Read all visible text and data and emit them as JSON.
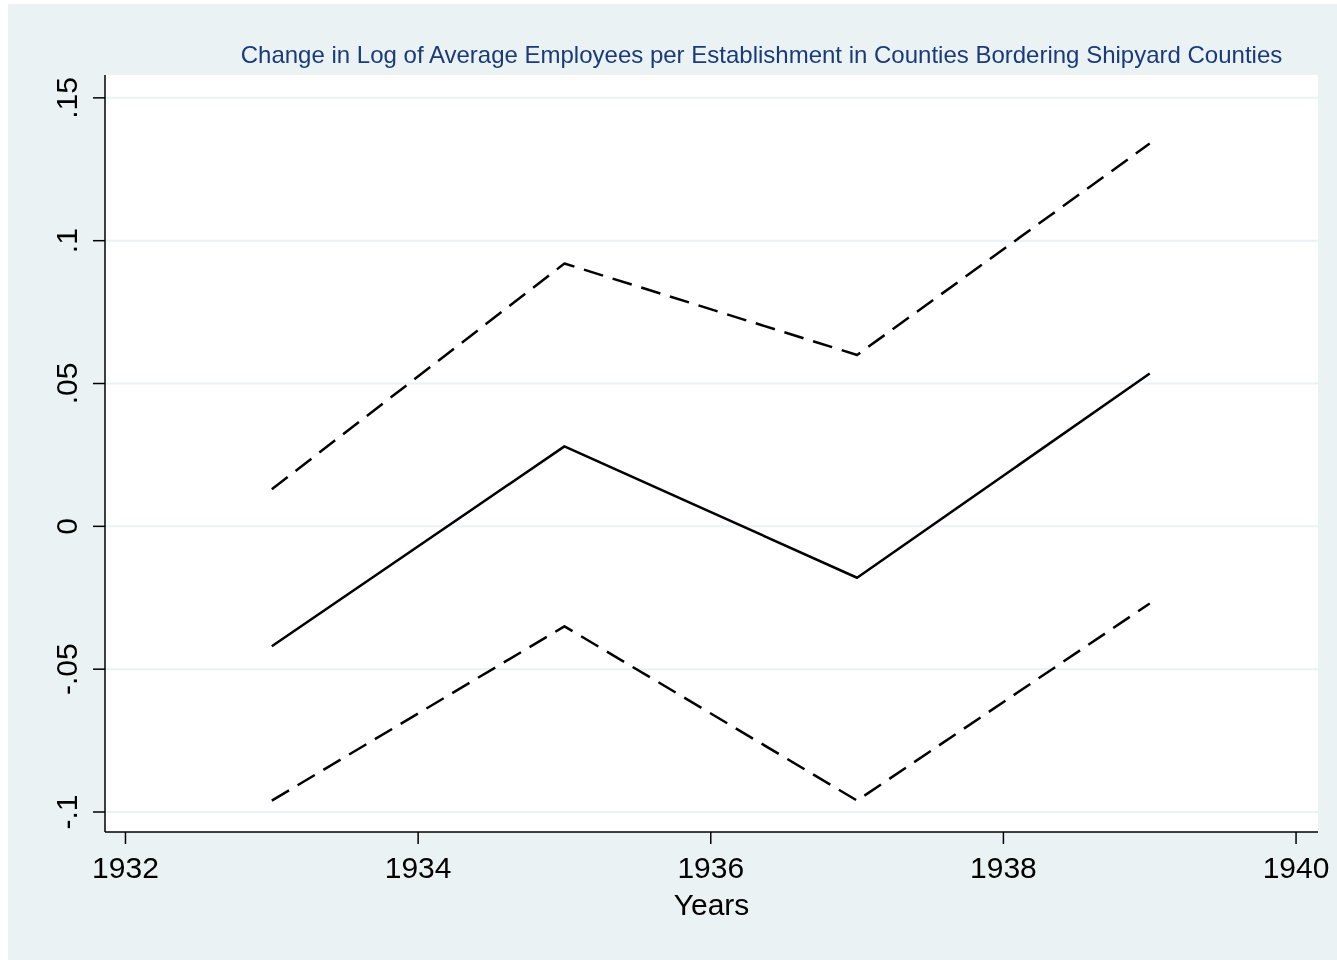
{
  "chart_data": {
    "type": "line",
    "title": "Change in Log of Average Employees per Establishment in Counties Bordering Shipyard Counties",
    "xlabel": "Years",
    "x": [
      1933,
      1935,
      1937,
      1939
    ],
    "series": [
      {
        "color": "#000000",
        "line_style": "dashed",
        "values": [
          0.013,
          0.092,
          0.06,
          0.134
        ]
      },
      {
        "color": "#000000",
        "line_style": "solid",
        "values": [
          -0.042,
          0.028,
          -0.018,
          0.0535
        ]
      },
      {
        "color": "#000000",
        "line_style": "dashed",
        "values": [
          -0.096,
          -0.035,
          -0.096,
          -0.027
        ]
      }
    ],
    "xlim": [
      1931.86,
      1940.15
    ],
    "xticks": [
      1932,
      1934,
      1936,
      1938,
      1940
    ],
    "ylim": [
      -0.107,
      0.158
    ],
    "yticks": [
      {
        "value": -0.1,
        "label": "-.1"
      },
      {
        "value": -0.05,
        "label": "-.05"
      },
      {
        "value": 0,
        "label": "0"
      },
      {
        "value": 0.05,
        "label": ".05"
      },
      {
        "value": 0.1,
        "label": ".1"
      },
      {
        "value": 0.15,
        "label": ".15"
      }
    ],
    "grid": "y",
    "marker": "none"
  }
}
